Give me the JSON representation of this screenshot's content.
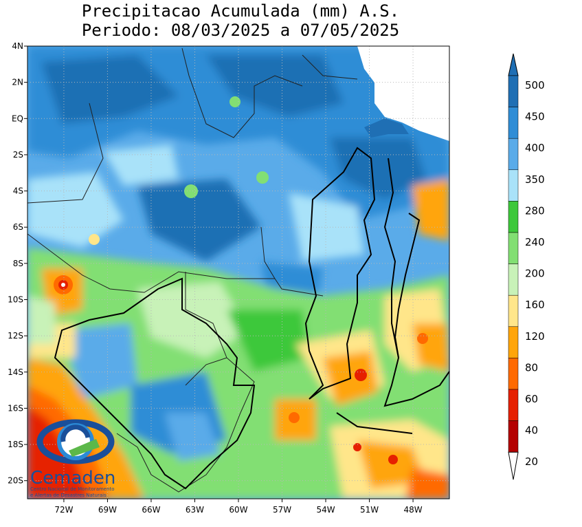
{
  "title": {
    "line1": "Precipitacao Acumulada (mm) A.S.",
    "line2": "Periodo: 08/03/2025 a 07/05/2025"
  },
  "map": {
    "lat_labels": [
      "4N",
      "2N",
      "EQ",
      "2S",
      "4S",
      "6S",
      "8S",
      "10S",
      "12S",
      "14S",
      "16S",
      "18S",
      "20S"
    ],
    "lon_labels": [
      "72W",
      "69W",
      "66W",
      "63W",
      "60W",
      "57W",
      "54W",
      "51W",
      "48W"
    ],
    "lon_range": [
      -74.5,
      -45.5
    ],
    "lat_range": [
      -21,
      4
    ]
  },
  "colorbar": {
    "labels": [
      "500",
      "450",
      "400",
      "350",
      "280",
      "240",
      "200",
      "160",
      "120",
      "80",
      "60",
      "40",
      "20"
    ],
    "colors": [
      "#1f6fb4",
      "#2f8dd6",
      "#5aabe9",
      "#a9e2f9",
      "#3dc83b",
      "#82df73",
      "#c8f2b8",
      "#ffe68a",
      "#ffa50a",
      "#ff6a00",
      "#e62000",
      "#b40000"
    ]
  },
  "logo": {
    "name": "Cemaden",
    "subtitle1": "Centro Nacional de Monitoramento",
    "subtitle2": "e Alertas de Desastres Naturais"
  },
  "palette": {
    "deep_blue": "#1f6fb4",
    "blue": "#2f8dd6",
    "light_blue": "#5aabe9",
    "cyan": "#a9e2f9",
    "green": "#3dc83b",
    "light_green": "#82df73",
    "pale_green": "#c8f2b8",
    "yellow": "#ffe68a",
    "orange": "#ffa50a",
    "dark_orange": "#ff6a00",
    "red": "#e62000",
    "dark_red": "#b40000"
  }
}
